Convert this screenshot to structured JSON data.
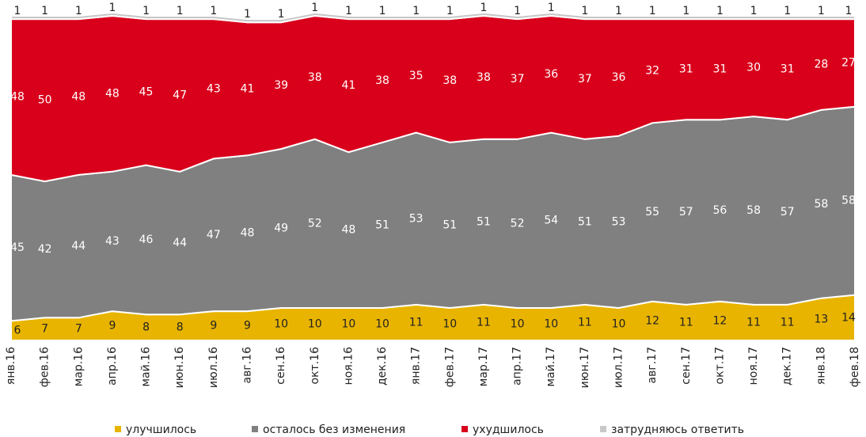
{
  "chart_data": {
    "type": "stacked-area",
    "categories": [
      "янв.16",
      "фев.16",
      "мар.16",
      "апр.16",
      "май.16",
      "июн.16",
      "июл.16",
      "авг.16",
      "сен.16",
      "окт.16",
      "ноя.16",
      "дек.16",
      "янв.17",
      "фев.17",
      "мар.17",
      "апр.17",
      "май.17",
      "июн.17",
      "июл.17",
      "авг.17",
      "сен.17",
      "окт.17",
      "ноя.17",
      "дек.17",
      "янв.18",
      "фев.18"
    ],
    "series": [
      {
        "name": "улучшилось",
        "color": "#e8b400",
        "values": [
          6,
          7,
          7,
          9,
          8,
          8,
          9,
          9,
          10,
          10,
          10,
          10,
          11,
          10,
          11,
          10,
          10,
          11,
          10,
          12,
          11,
          12,
          11,
          11,
          13,
          14
        ]
      },
      {
        "name": "осталось без изменения",
        "color": "#808080",
        "values": [
          45,
          42,
          44,
          43,
          46,
          44,
          47,
          48,
          49,
          52,
          48,
          51,
          53,
          51,
          51,
          52,
          54,
          51,
          53,
          55,
          57,
          56,
          58,
          57,
          58,
          58
        ]
      },
      {
        "name": "ухудшилось",
        "color": "#d9001b",
        "values": [
          48,
          50,
          48,
          48,
          45,
          47,
          43,
          41,
          39,
          38,
          41,
          38,
          35,
          38,
          38,
          37,
          36,
          37,
          36,
          32,
          31,
          31,
          30,
          31,
          28,
          27
        ]
      },
      {
        "name": "затрудняюсь ответить",
        "color": "#c8c8c8",
        "values": [
          1,
          1,
          1,
          1,
          1,
          1,
          1,
          1,
          1,
          1,
          1,
          1,
          1,
          1,
          1,
          1,
          1,
          1,
          1,
          1,
          1,
          1,
          1,
          1,
          1,
          1
        ]
      }
    ],
    "ylim": [
      0,
      100
    ]
  }
}
